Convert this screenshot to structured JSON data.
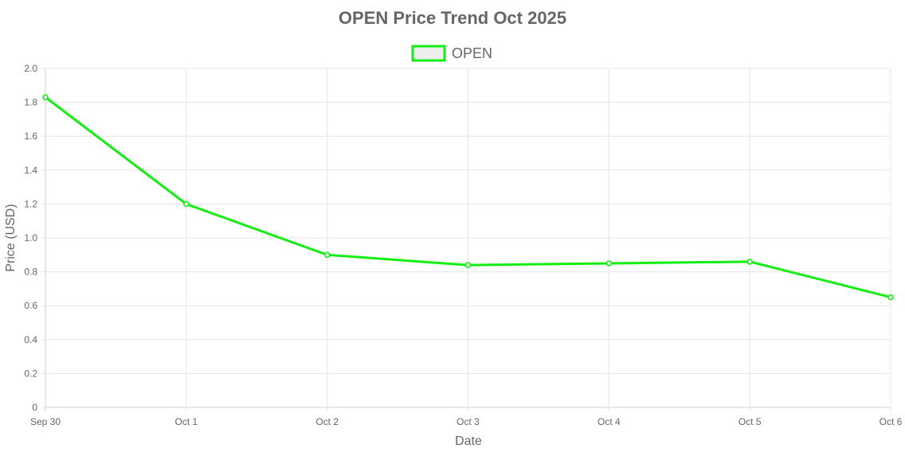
{
  "chart_data": {
    "type": "line",
    "title": "OPEN Price Trend Oct 2025",
    "xlabel": "Date",
    "ylabel": "Price (USD)",
    "categories": [
      "Sep 30",
      "Oct 1",
      "Oct 2",
      "Oct 3",
      "Oct 4",
      "Oct 5",
      "Oct 6"
    ],
    "series": [
      {
        "name": "OPEN",
        "values": [
          1.83,
          1.2,
          0.9,
          0.84,
          0.85,
          0.86,
          0.65
        ],
        "color": "#11ee11"
      }
    ],
    "ylim": [
      0,
      2.0
    ],
    "yticks": [
      "0",
      "0.2",
      "0.4",
      "0.6",
      "0.8",
      "1.0",
      "1.2",
      "1.4",
      "1.6",
      "1.8",
      "2.0"
    ],
    "grid": true,
    "legend_position": "top-center"
  }
}
